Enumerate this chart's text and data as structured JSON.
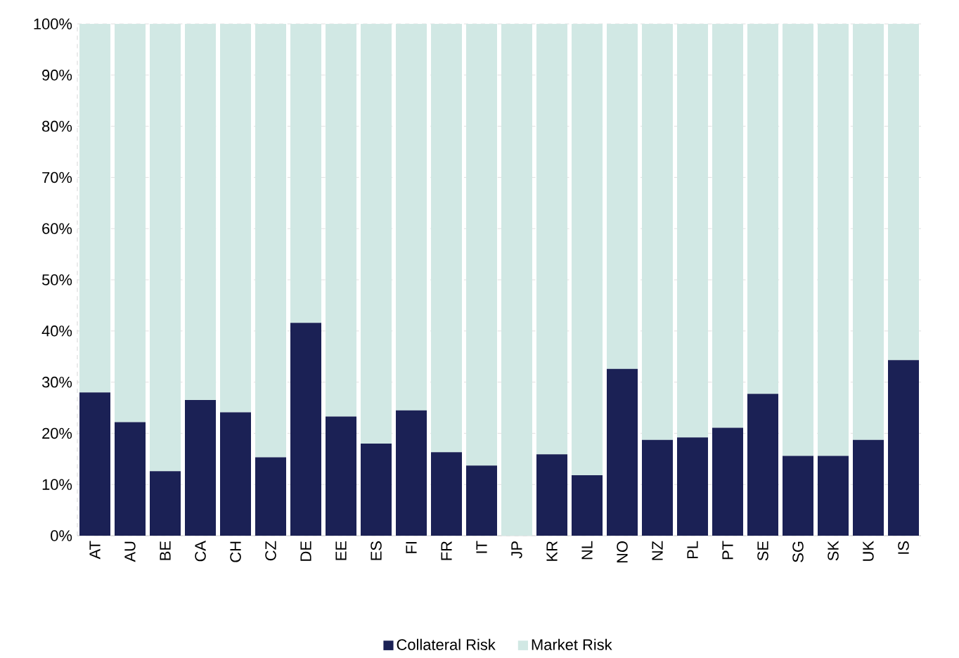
{
  "chart_data": {
    "type": "bar",
    "stacked": true,
    "categories": [
      "AT",
      "AU",
      "BE",
      "CA",
      "CH",
      "CZ",
      "DE",
      "EE",
      "ES",
      "FI",
      "FR",
      "IT",
      "JP",
      "KR",
      "NL",
      "NO",
      "NZ",
      "PL",
      "PT",
      "SE",
      "SG",
      "SK",
      "UK",
      "IS"
    ],
    "series": [
      {
        "name": "Collateral Risk",
        "color": "#1b2155",
        "values": [
          28,
          22.2,
          12.6,
          26.5,
          24.1,
          15.3,
          41.6,
          23.3,
          18,
          24.5,
          16.3,
          13.7,
          0,
          15.9,
          11.8,
          32.6,
          18.7,
          19.2,
          21.1,
          27.7,
          15.6,
          15.6,
          18.7,
          34.3
        ]
      },
      {
        "name": "Market Risk",
        "color": "#d1e8e4",
        "values": [
          72,
          77.8,
          87.4,
          73.5,
          75.9,
          84.7,
          58.4,
          76.7,
          82,
          75.5,
          83.7,
          86.3,
          100,
          84.1,
          88.2,
          67.4,
          81.3,
          80.8,
          78.9,
          72.3,
          84.4,
          84.4,
          81.3,
          65.7
        ]
      }
    ],
    "ylim": [
      0,
      100
    ],
    "yticks": [
      {
        "value": 0,
        "label": "0%"
      },
      {
        "value": 10,
        "label": "10%"
      },
      {
        "value": 20,
        "label": "20%"
      },
      {
        "value": 30,
        "label": "30%"
      },
      {
        "value": 40,
        "label": "40%"
      },
      {
        "value": 50,
        "label": "50%"
      },
      {
        "value": 60,
        "label": "60%"
      },
      {
        "value": 70,
        "label": "70%"
      },
      {
        "value": 80,
        "label": "80%"
      },
      {
        "value": 90,
        "label": "90%"
      },
      {
        "value": 100,
        "label": "100%"
      }
    ],
    "grid": "y",
    "legend": "bottom"
  }
}
